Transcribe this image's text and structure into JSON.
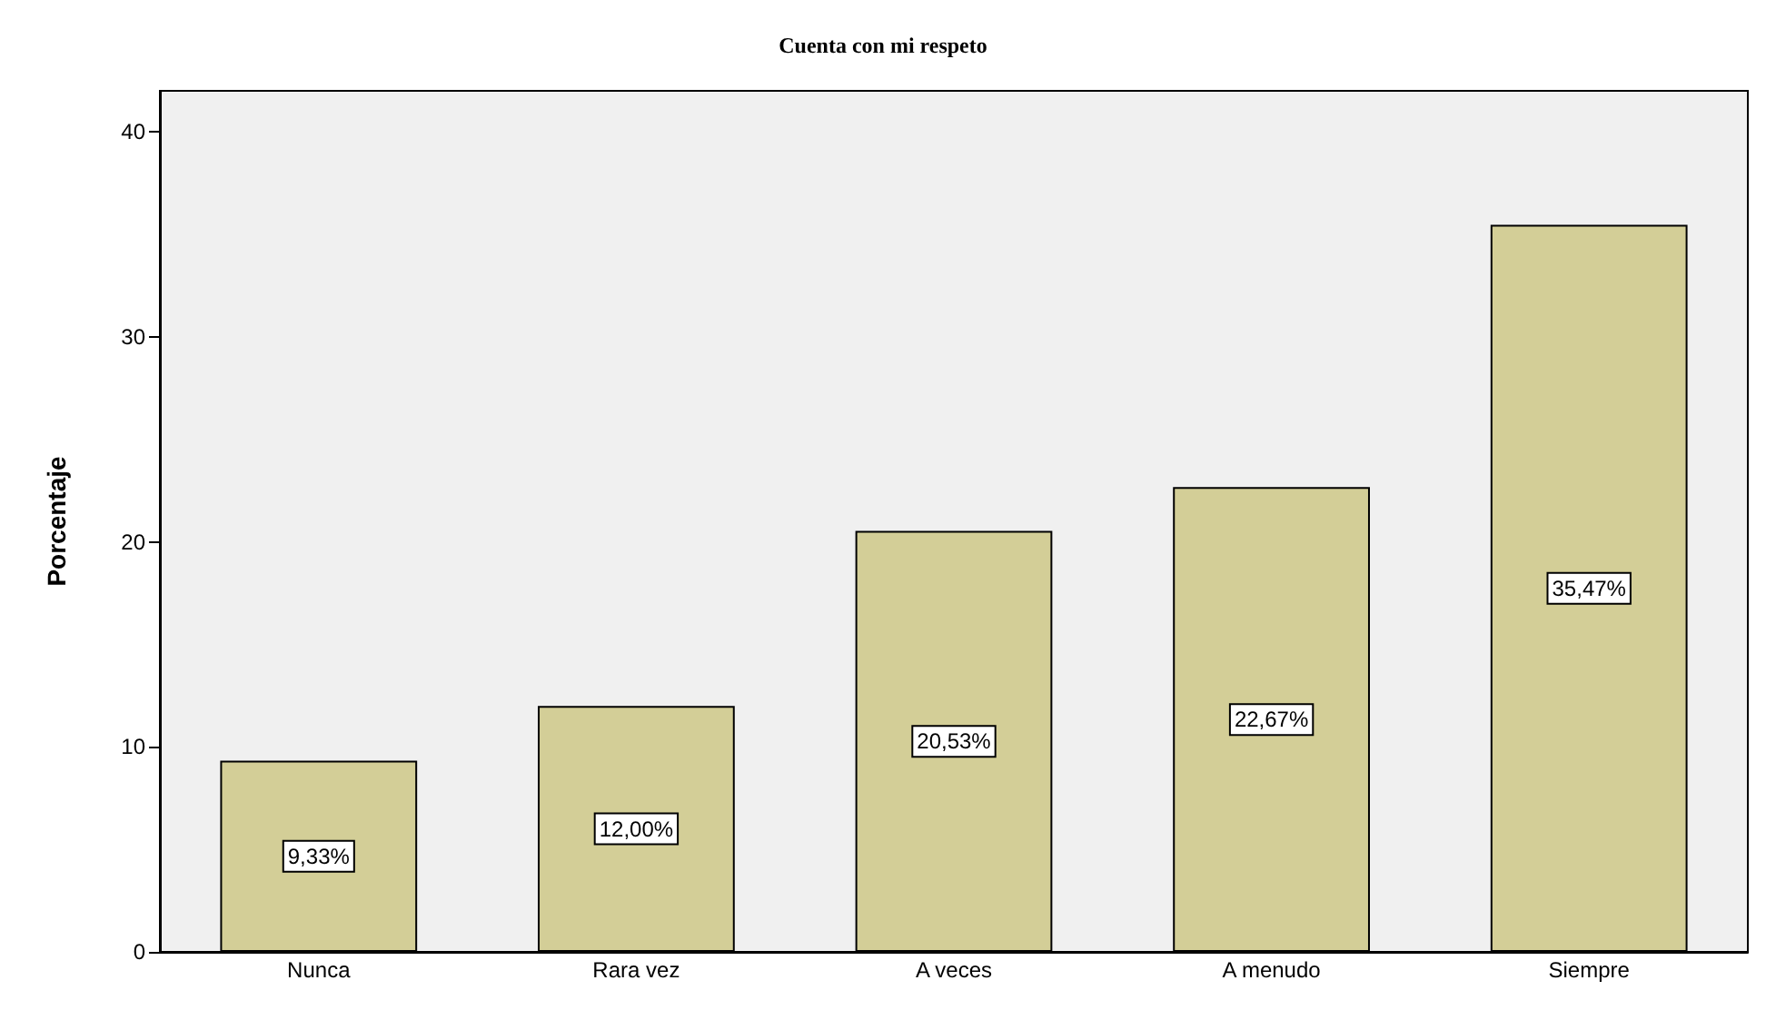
{
  "chart_data": {
    "type": "bar",
    "title": "Cuenta con mi respeto",
    "ylabel": "Porcentaje",
    "categories": [
      "Nunca",
      "Rara vez",
      "A veces",
      "A menudo",
      "Siempre"
    ],
    "values": [
      9.33,
      12.0,
      20.53,
      22.67,
      35.47
    ],
    "color": "#d3ce97",
    "value_labels": [
      "9,33%",
      "12,00%",
      "20,53%",
      "22,67%",
      "35,47%"
    ],
    "ylim": [
      0,
      42
    ],
    "yticks": [
      0,
      10,
      20,
      30,
      40
    ],
    "grid": false
  }
}
